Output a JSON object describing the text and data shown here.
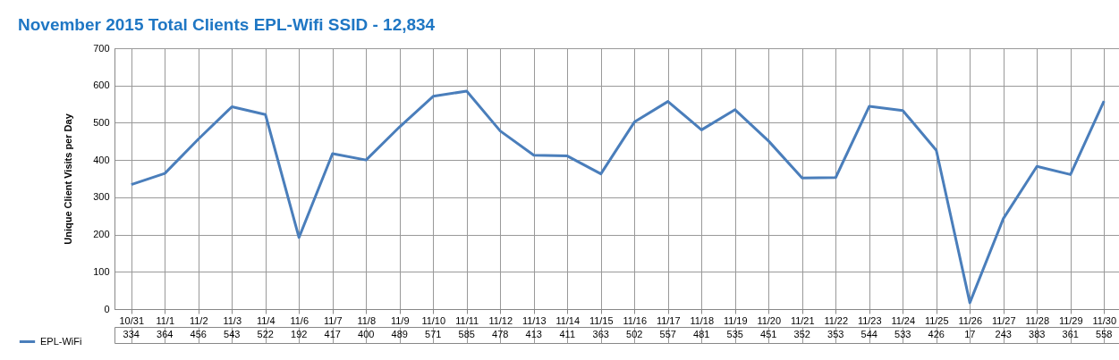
{
  "chart_data": {
    "type": "line",
    "title": "November 2015 Total Clients EPL-Wifi SSID  -  12,834",
    "ylabel": "Unique Client Visits per Day",
    "categories": [
      "10/31",
      "11/1",
      "11/2",
      "11/3",
      "11/4",
      "11/6",
      "11/7",
      "11/8",
      "11/9",
      "11/10",
      "11/11",
      "11/12",
      "11/13",
      "11/14",
      "11/15",
      "11/16",
      "11/17",
      "11/18",
      "11/19",
      "11/20",
      "11/21",
      "11/22",
      "11/23",
      "11/24",
      "11/25",
      "11/26",
      "11/27",
      "11/28",
      "11/29",
      "11/30"
    ],
    "series": [
      {
        "name": "EPL-WiFi",
        "color": "#4a7ebb",
        "values": [
          334,
          364,
          456,
          543,
          522,
          192,
          417,
          400,
          489,
          571,
          585,
          478,
          413,
          411,
          363,
          502,
          557,
          481,
          535,
          451,
          352,
          353,
          544,
          533,
          426,
          17,
          243,
          383,
          361,
          558
        ]
      }
    ],
    "ylim": [
      0,
      700
    ],
    "yticks": [
      0,
      100,
      200,
      300,
      400,
      500,
      600,
      700
    ],
    "grid": true,
    "legend": "bottom left",
    "data_labels": true,
    "marker": "none",
    "line_style": "solid"
  }
}
